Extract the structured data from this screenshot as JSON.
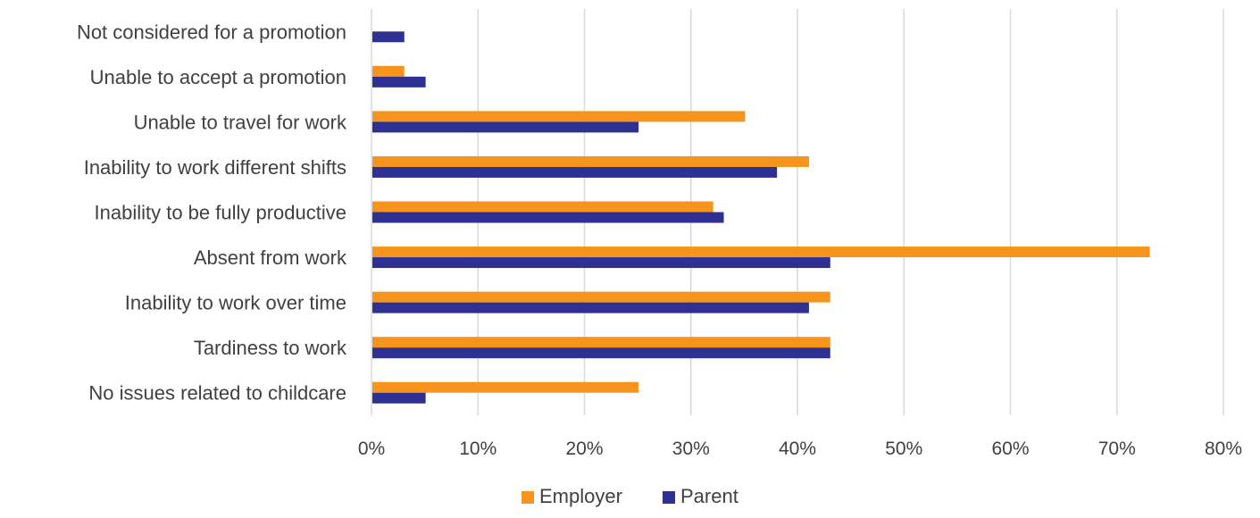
{
  "chart_data": {
    "type": "bar",
    "orientation": "horizontal",
    "categories": [
      "Not considered for a promotion",
      "Unable to accept a promotion",
      "Unable to travel for work",
      "Inability to work different shifts",
      "Inability to be fully productive",
      "Absent from work",
      "Inability to work over time",
      "Tardiness to work",
      "No issues related to childcare"
    ],
    "series": [
      {
        "name": "Employer",
        "color": "#F7941D",
        "values": [
          0,
          3,
          35,
          41,
          32,
          73,
          43,
          43,
          25
        ]
      },
      {
        "name": "Parent",
        "color": "#2E3192",
        "values": [
          3,
          5,
          25,
          38,
          33,
          43,
          41,
          43,
          5
        ]
      }
    ],
    "x_ticks": [
      "0%",
      "10%",
      "20%",
      "30%",
      "40%",
      "50%",
      "60%",
      "70%",
      "80%"
    ],
    "xlim": [
      0,
      80
    ],
    "value_unit": "percent",
    "grid": "vertical",
    "legend_position": "bottom",
    "title": "",
    "xlabel": "",
    "ylabel": ""
  }
}
